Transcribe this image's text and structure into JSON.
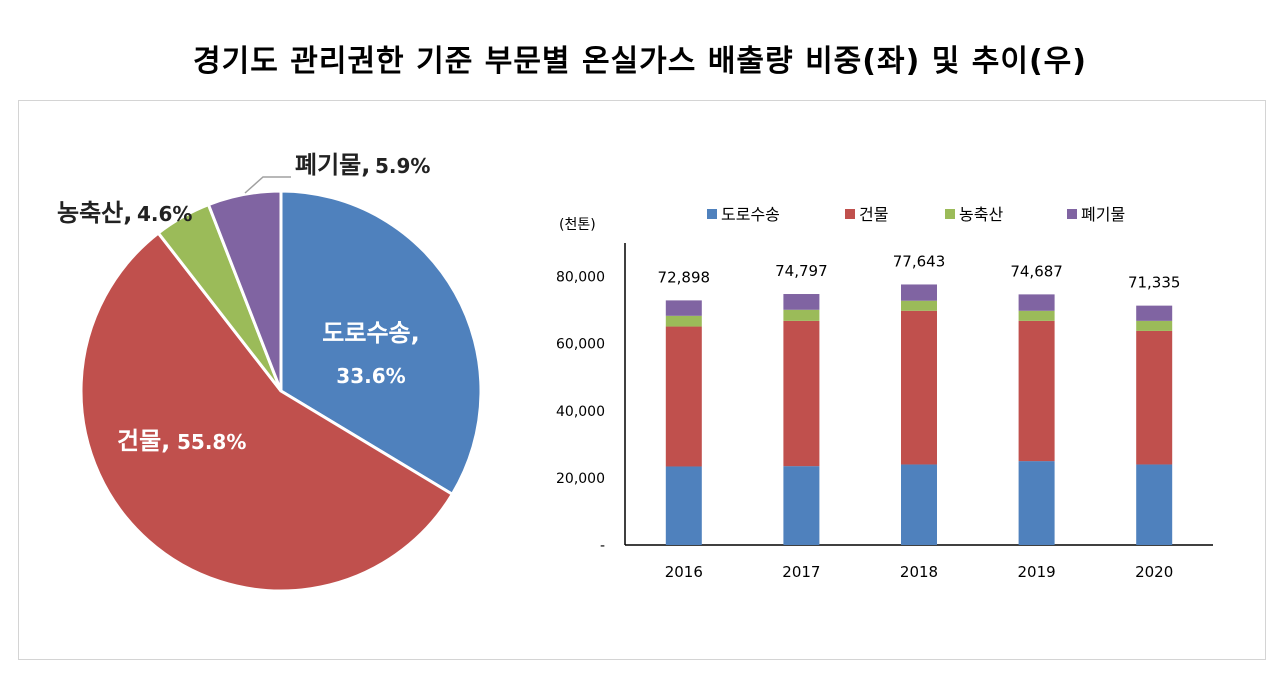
{
  "title": "경기도 관리권한 기준 부문별 온실가스 배출량 비중(좌) 및 추이(우)",
  "colors": {
    "road": "#4F81BD",
    "building": "#C0504D",
    "agri": "#9BBB59",
    "waste": "#8064A2"
  },
  "chart_data": [
    {
      "type": "pie",
      "slices": [
        {
          "name": "도로수송",
          "label": "도로수송,",
          "pct_label": "33.6%",
          "value": 33.6
        },
        {
          "name": "건물",
          "label": "건물,",
          "pct_label": "55.8%",
          "value": 55.8
        },
        {
          "name": "농축산",
          "label": "농축산,",
          "pct_label": "4.6%",
          "value": 4.6
        },
        {
          "name": "폐기물",
          "label": "폐기물,",
          "pct_label": "5.9%",
          "value": 5.9
        }
      ]
    },
    {
      "type": "bar",
      "stacked": true,
      "unit_label": "(천톤)",
      "categories": [
        "2016",
        "2017",
        "2018",
        "2019",
        "2020"
      ],
      "ylim": [
        0,
        90000
      ],
      "yticks": [
        0,
        20000,
        40000,
        60000,
        80000
      ],
      "ytick_labels": [
        "-",
        "20,000",
        "40,000",
        "60,000",
        "80,000"
      ],
      "legend_position": "top",
      "totals": [
        72898,
        74797,
        77643,
        74687,
        71335
      ],
      "total_labels": [
        "72,898",
        "74,797",
        "77,643",
        "74,687",
        "71,335"
      ],
      "series": [
        {
          "name": "도로수송",
          "values": [
            23400,
            23500,
            24000,
            25000,
            24000
          ]
        },
        {
          "name": "건물",
          "values": [
            41700,
            43300,
            45800,
            41800,
            39800
          ]
        },
        {
          "name": "농축산",
          "values": [
            3200,
            3300,
            3000,
            3000,
            3000
          ]
        },
        {
          "name": "폐기물",
          "values": [
            4598,
            4697,
            4843,
            4887,
            4535
          ]
        }
      ]
    }
  ]
}
